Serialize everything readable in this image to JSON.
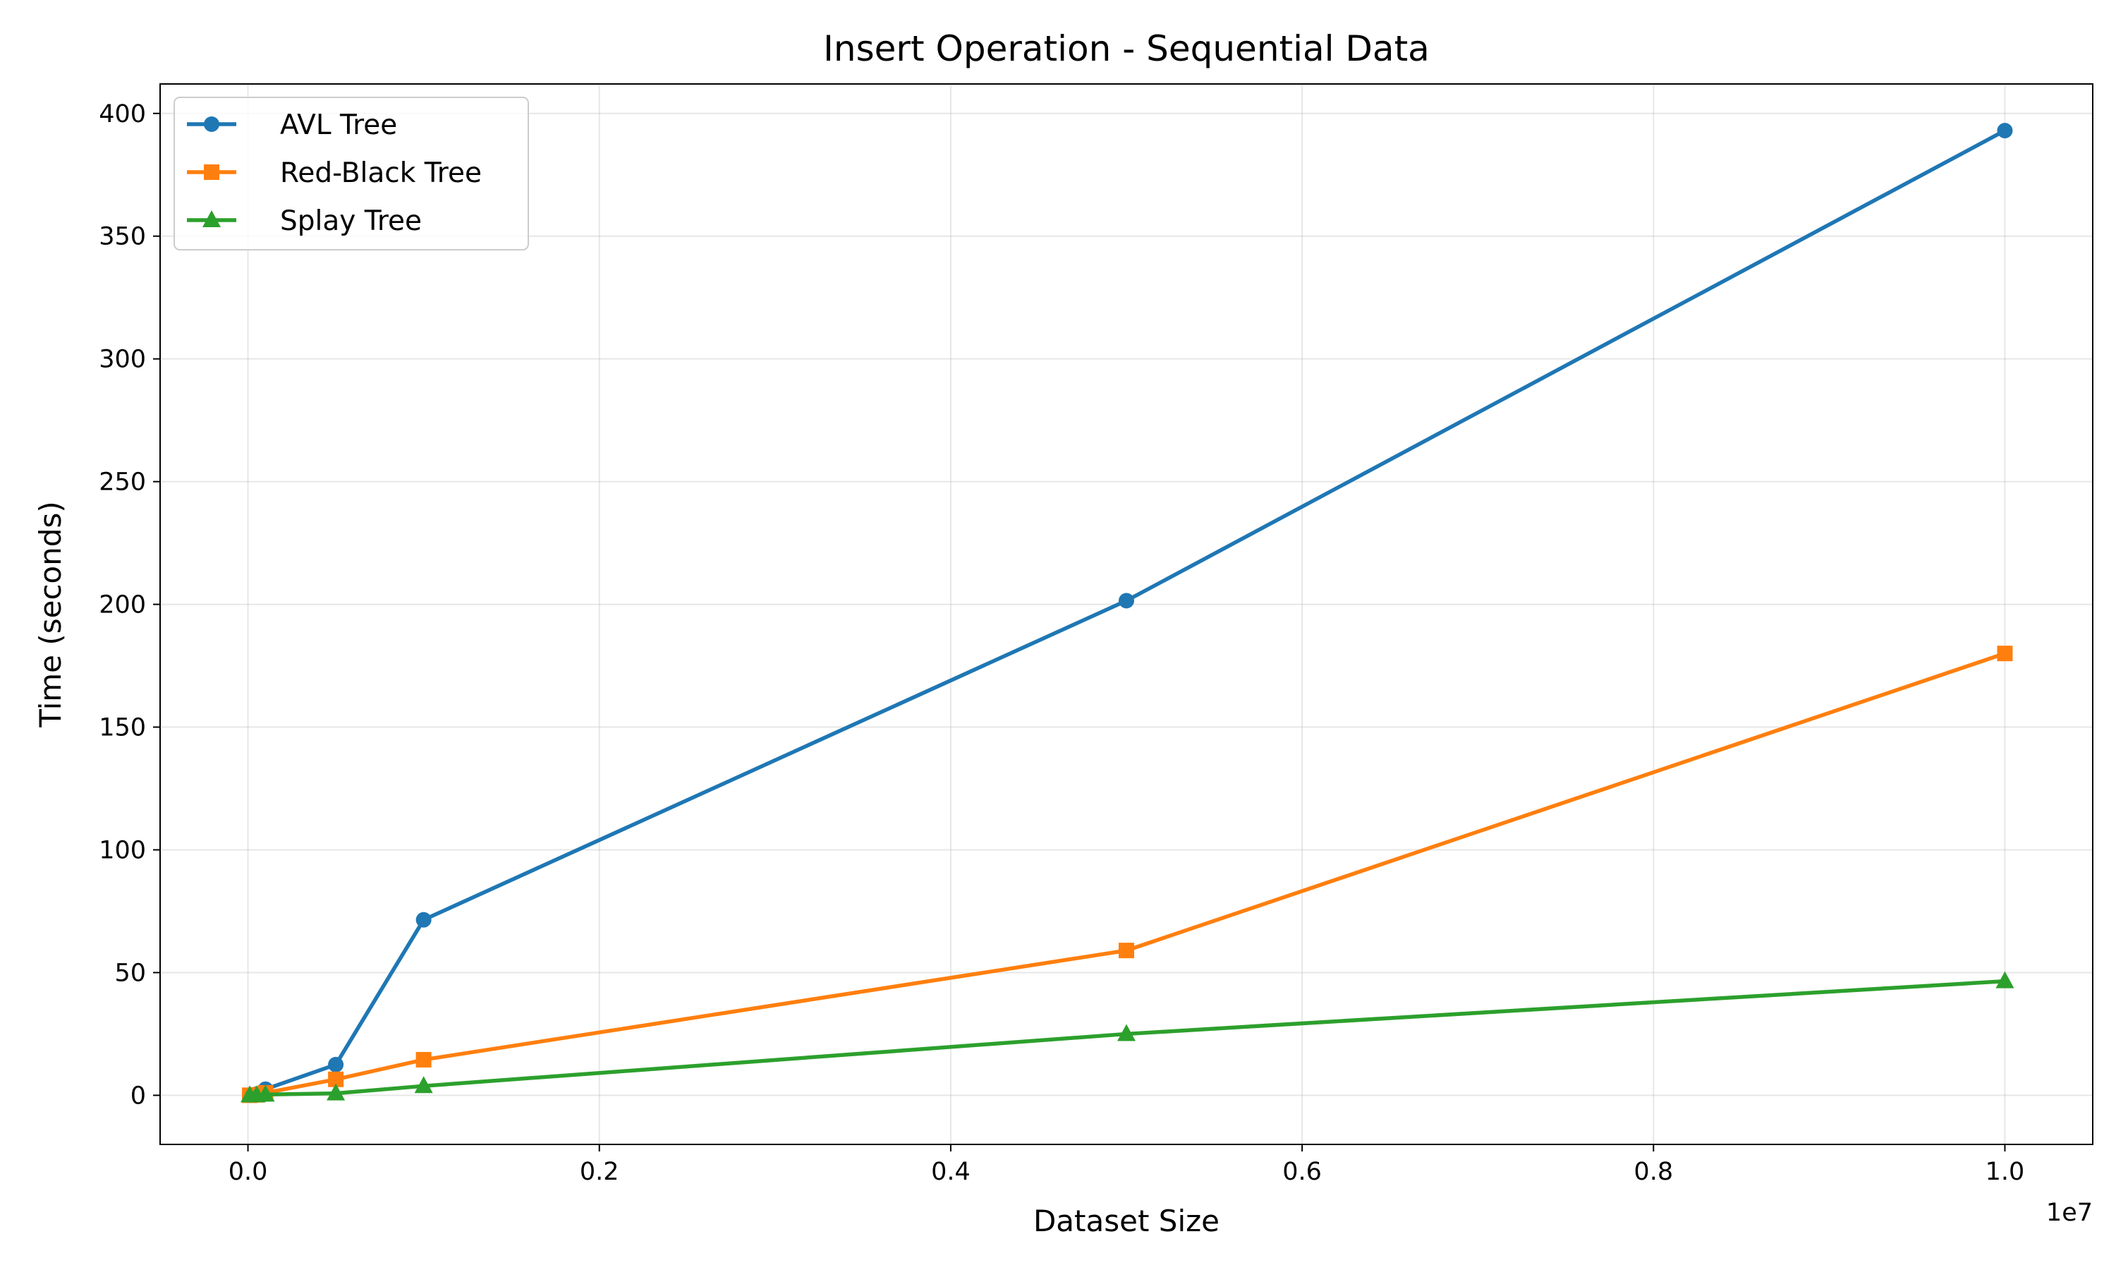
{
  "chart_data": {
    "type": "line",
    "title": "Insert Operation - Sequential Data",
    "xlabel": "Dataset Size",
    "ylabel": "Time (seconds)",
    "x_offset_label": "1e7",
    "xlim": [
      -0.05,
      1.05
    ],
    "ylim": [
      -20,
      412
    ],
    "x_ticks": [
      0.0,
      0.2,
      0.4,
      0.6,
      0.8,
      1.0
    ],
    "x_tick_labels": [
      "0.0",
      "0.2",
      "0.4",
      "0.6",
      "0.8",
      "1.0"
    ],
    "y_ticks": [
      0,
      50,
      100,
      150,
      200,
      250,
      300,
      350,
      400
    ],
    "y_tick_labels": [
      "0",
      "50",
      "100",
      "150",
      "200",
      "250",
      "300",
      "350",
      "400"
    ],
    "grid": true,
    "legend_position": "top-left",
    "x": [
      0.001,
      0.005,
      0.01,
      0.05,
      0.1,
      0.5,
      1.0
    ],
    "series": [
      {
        "name": "AVL Tree",
        "color": "#1f77b4",
        "marker": "circle",
        "values": [
          0.05,
          0.5,
          2.5,
          12.5,
          71.5,
          201.5,
          393
        ]
      },
      {
        "name": "Red-Black Tree",
        "color": "#ff7f0e",
        "marker": "square",
        "values": [
          0.03,
          0.2,
          1.0,
          6.5,
          14.5,
          59,
          180
        ]
      },
      {
        "name": "Splay Tree",
        "color": "#2ca02c",
        "marker": "triangle",
        "values": [
          0.01,
          0.05,
          0.3,
          0.8,
          3.8,
          25,
          46.5
        ]
      }
    ]
  }
}
